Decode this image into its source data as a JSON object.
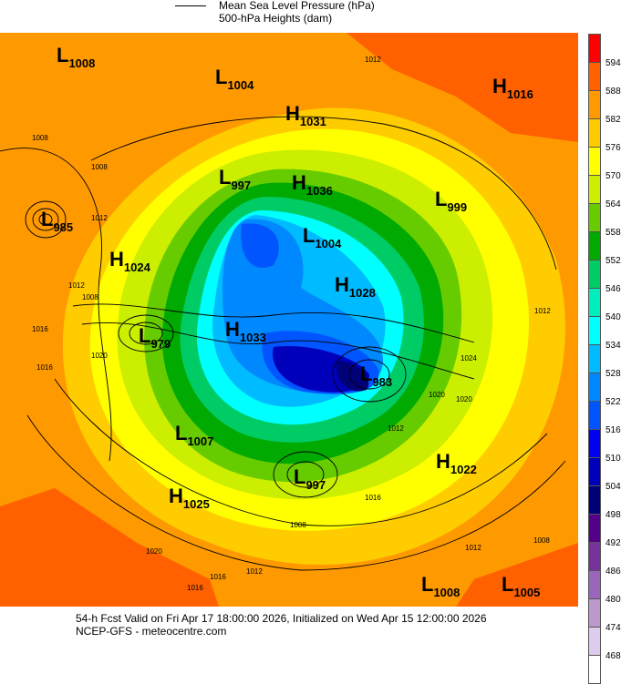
{
  "header": {
    "legend_line": "Mean Sea Level Pressure (hPa)",
    "subtitle": "500-hPa Heights (dam)"
  },
  "legend": {
    "levels": [
      {
        "label": "594",
        "color": "#ff0000"
      },
      {
        "label": "588",
        "color": "#ff6000"
      },
      {
        "label": "582",
        "color": "#ff9900"
      },
      {
        "label": "576",
        "color": "#ffcc00"
      },
      {
        "label": "570",
        "color": "#ffff00"
      },
      {
        "label": "564",
        "color": "#ccee00"
      },
      {
        "label": "558",
        "color": "#66cc00"
      },
      {
        "label": "552",
        "color": "#00aa00"
      },
      {
        "label": "546",
        "color": "#00cc66"
      },
      {
        "label": "540",
        "color": "#00eebb"
      },
      {
        "label": "534",
        "color": "#00ffff"
      },
      {
        "label": "528",
        "color": "#00bbff"
      },
      {
        "label": "522",
        "color": "#0088ff"
      },
      {
        "label": "516",
        "color": "#0055ff"
      },
      {
        "label": "510",
        "color": "#0000ee"
      },
      {
        "label": "504",
        "color": "#0000bb"
      },
      {
        "label": "498",
        "color": "#000077"
      },
      {
        "label": "492",
        "color": "#550088"
      },
      {
        "label": "486",
        "color": "#773399"
      },
      {
        "label": "480",
        "color": "#9966bb"
      },
      {
        "label": "474",
        "color": "#bb99cc"
      },
      {
        "label": "468",
        "color": "#ddccee"
      },
      {
        "label": "",
        "color": "#ffffff"
      }
    ]
  },
  "systems": [
    {
      "type": "L",
      "value": "1008"
    },
    {
      "type": "L",
      "value": "1004"
    },
    {
      "type": "H",
      "value": "1031"
    },
    {
      "type": "H",
      "value": "1016"
    },
    {
      "type": "L",
      "value": "997"
    },
    {
      "type": "H",
      "value": "1036"
    },
    {
      "type": "L",
      "value": "999"
    },
    {
      "type": "L",
      "value": "985"
    },
    {
      "type": "L",
      "value": "1004"
    },
    {
      "type": "H",
      "value": "1024"
    },
    {
      "type": "H",
      "value": "1028"
    },
    {
      "type": "L",
      "value": "979"
    },
    {
      "type": "H",
      "value": "1033"
    },
    {
      "type": "L",
      "value": "983"
    },
    {
      "type": "L",
      "value": "1007"
    },
    {
      "type": "H",
      "value": "1022"
    },
    {
      "type": "L",
      "value": "997"
    },
    {
      "type": "H",
      "value": "1025"
    },
    {
      "type": "L",
      "value": "1008"
    },
    {
      "type": "L",
      "value": "1005"
    }
  ],
  "contour_labels": [
    "1012",
    "1008",
    "1008",
    "1012",
    "1016",
    "1012",
    "1008",
    "1016",
    "1020",
    "1020",
    "1024",
    "1020",
    "1012",
    "1016",
    "1008",
    "1012",
    "1020",
    "1016",
    "1012",
    "1016",
    "1012",
    "1008"
  ],
  "footer": {
    "line1": "54-h Fcst Valid on Fri Apr 17 18:00:00 2026, Initialized on Wed Apr 15 12:00:00 2026",
    "line2": "NCEP-GFS  - meteocentre.com"
  }
}
